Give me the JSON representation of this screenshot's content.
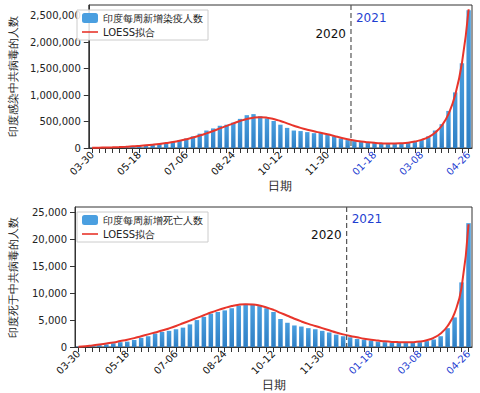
{
  "chart_data": [
    {
      "type": "bar",
      "x_label": "日期",
      "y_label": "印度感染中共病毒的人数",
      "categories": [
        "03-30",
        null,
        null,
        null,
        null,
        null,
        null,
        "05-18",
        null,
        null,
        null,
        null,
        null,
        null,
        "07-06",
        null,
        null,
        null,
        null,
        null,
        null,
        "08-24",
        null,
        null,
        null,
        null,
        null,
        null,
        "10-12",
        null,
        null,
        null,
        null,
        null,
        null,
        "11-30",
        null,
        null,
        null,
        null,
        null,
        null,
        "01-18",
        null,
        null,
        null,
        null,
        null,
        null,
        "03-08",
        null,
        null,
        null,
        null,
        null,
        null,
        "04-26"
      ],
      "series": [
        {
          "name": "印度每周新增染疫人数",
          "type": "bar",
          "color": "#4a9fe0",
          "values": [
            4000,
            5000,
            7000,
            10000,
            15000,
            22000,
            28000,
            38000,
            48000,
            62000,
            75000,
            95000,
            120000,
            150000,
            180000,
            220000,
            270000,
            330000,
            370000,
            420000,
            440000,
            480000,
            550000,
            620000,
            640000,
            600000,
            560000,
            510000,
            440000,
            380000,
            330000,
            320000,
            300000,
            280000,
            290000,
            250000,
            220000,
            180000,
            150000,
            130000,
            125000,
            110000,
            100000,
            90000,
            85000,
            80000,
            85000,
            100000,
            115000,
            150000,
            220000,
            330000,
            450000,
            700000,
            1050000,
            1600000,
            2600000
          ]
        },
        {
          "name": "LOESS拟合",
          "type": "line",
          "color": "#e8352b",
          "marker": "none",
          "line_style": "solid",
          "values": [
            3000,
            6000,
            9000,
            13000,
            18000,
            24000,
            31000,
            40000,
            50000,
            62000,
            76000,
            93000,
            113000,
            137000,
            165000,
            197000,
            235000,
            277000,
            322000,
            370000,
            418000,
            465000,
            510000,
            548000,
            573000,
            582000,
            573000,
            548000,
            510000,
            466000,
            421000,
            380000,
            345000,
            315000,
            287000,
            258000,
            227000,
            195000,
            165000,
            140000,
            122000,
            108000,
            97000,
            89000,
            85000,
            85000,
            90000,
            101000,
            121000,
            154000,
            205000,
            290000,
            420000,
            640000,
            1000000,
            1600000,
            2620000
          ]
        }
      ],
      "ylim": [
        0,
        2700000
      ],
      "yticks": [
        0,
        {
          "value": 500000,
          "label": "500,000"
        },
        {
          "value": 1000000,
          "label": "1,000,000"
        },
        {
          "value": 1500000,
          "label": "1,500,000"
        },
        {
          "value": 2000000,
          "label": "2,000,000"
        },
        {
          "value": 2500000,
          "label": "2,500,000"
        }
      ],
      "annotations": [
        {
          "text": "2020",
          "color": "#111111"
        },
        {
          "text": "2021",
          "color": "#1f3fd1"
        }
      ],
      "legend": "upper left",
      "grid": false
    },
    {
      "type": "bar",
      "x_label": "日期",
      "y_label": "印度死于中共病毒的人数",
      "categories": [
        "03-30",
        null,
        null,
        null,
        null,
        null,
        null,
        "05-18",
        null,
        null,
        null,
        null,
        null,
        null,
        "07-06",
        null,
        null,
        null,
        null,
        null,
        null,
        "08-24",
        null,
        null,
        null,
        null,
        null,
        null,
        "10-12",
        null,
        null,
        null,
        null,
        null,
        null,
        "11-30",
        null,
        null,
        null,
        null,
        null,
        null,
        "01-18",
        null,
        null,
        null,
        null,
        null,
        null,
        "03-08",
        null,
        null,
        null,
        null,
        null,
        null,
        "04-26"
      ],
      "series": [
        {
          "name": "印度每周新增死亡人数",
          "type": "bar",
          "color": "#4a9fe0",
          "values": [
            100,
            150,
            250,
            350,
            500,
            700,
            900,
            1000,
            1300,
            1700,
            2000,
            2500,
            2800,
            3000,
            3300,
            3600,
            4200,
            5000,
            5600,
            6200,
            6500,
            6800,
            7200,
            7700,
            8000,
            8000,
            7600,
            7200,
            6500,
            5200,
            4500,
            4000,
            3800,
            3500,
            3300,
            3000,
            2700,
            2300,
            2000,
            1800,
            1500,
            1350,
            1200,
            1000,
            900,
            800,
            800,
            750,
            800,
            900,
            1100,
            1400,
            2000,
            3500,
            5500,
            12000,
            23000
          ]
        },
        {
          "name": "LOESS拟合",
          "type": "line",
          "color": "#e8352b",
          "marker": "none",
          "line_style": "solid",
          "values": [
            50,
            150,
            300,
            450,
            650,
            850,
            1100,
            1350,
            1650,
            2000,
            2350,
            2700,
            3050,
            3450,
            3900,
            4400,
            4900,
            5400,
            5900,
            6400,
            6850,
            7250,
            7600,
            7850,
            7950,
            7900,
            7700,
            7350,
            6900,
            6350,
            5800,
            5250,
            4750,
            4300,
            3900,
            3500,
            3100,
            2700,
            2350,
            2050,
            1800,
            1550,
            1350,
            1200,
            1050,
            950,
            900,
            880,
            900,
            1000,
            1250,
            1700,
            2500,
            3900,
            6300,
            11000,
            22800
          ]
        }
      ],
      "ylim": [
        0,
        26000
      ],
      "yticks": [
        0,
        {
          "value": 5000,
          "label": "5,000"
        },
        {
          "value": 10000,
          "label": "10,000"
        },
        {
          "value": 15000,
          "label": "15,000"
        },
        {
          "value": 20000,
          "label": "20,000"
        },
        {
          "value": 25000,
          "label": "25,000"
        }
      ],
      "annotations": [
        {
          "text": "2020",
          "color": "#111111"
        },
        {
          "text": "2021",
          "color": "#1f3fd1"
        }
      ],
      "legend": "upper left",
      "grid": false
    }
  ]
}
